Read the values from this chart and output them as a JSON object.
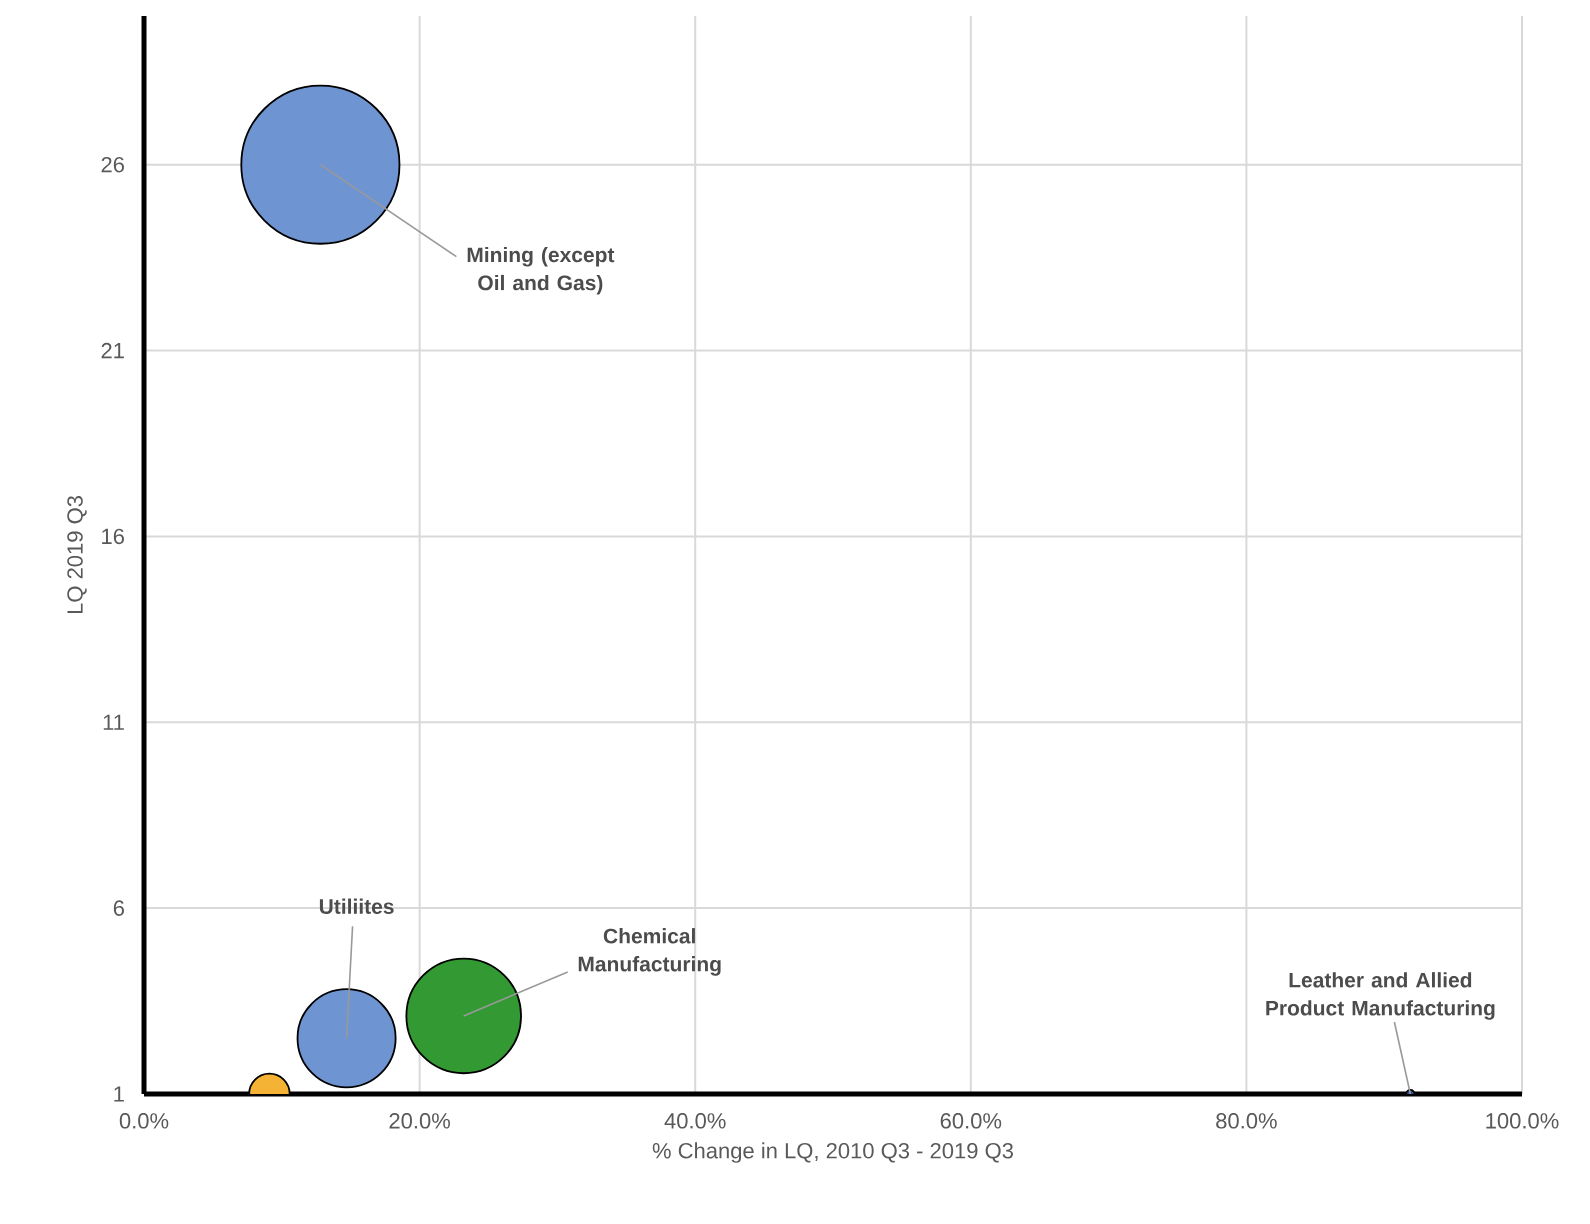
{
  "chart_data": {
    "type": "bubble",
    "xlabel": "% Change in LQ, 2010 Q3 - 2019 Q3",
    "ylabel": "LQ 2019 Q3",
    "x": [
      12.8,
      14.7,
      23.2,
      9.1,
      91.9
    ],
    "values": [
      26,
      2.5,
      3.1,
      1,
      1
    ],
    "sizes": [
      1,
      0.39,
      0.53,
      0.07,
      0.004
    ],
    "colors": [
      "#6f94d2",
      "#6f94d2",
      "#339933",
      "#f5b335",
      "#2f4f8f"
    ],
    "xlim": [
      0,
      100
    ],
    "xticks": [
      {
        "value": 0,
        "label": "0.0%"
      },
      {
        "value": 20,
        "label": "20.0%"
      },
      {
        "value": 40,
        "label": "40.0%"
      },
      {
        "value": 60,
        "label": "60.0%"
      },
      {
        "value": 80,
        "label": "80.0%"
      },
      {
        "value": 100,
        "label": "100.0%"
      }
    ],
    "ylim": [
      1,
      30
    ],
    "yticks": [
      1,
      6,
      11,
      16,
      21,
      26
    ],
    "grid": true,
    "annotations": [
      {
        "text": "Mining (except Oil and Gas)",
        "x": 12.8,
        "y": 26
      },
      {
        "text": "Utiliites",
        "x": 14.7,
        "y": 2.5
      },
      {
        "text": "Chemical Manufacturing",
        "x": 23.2,
        "y": 3.1
      },
      {
        "text": "Leather and Allied Product Manufacturing",
        "x": 91.9,
        "y": 1
      }
    ]
  }
}
